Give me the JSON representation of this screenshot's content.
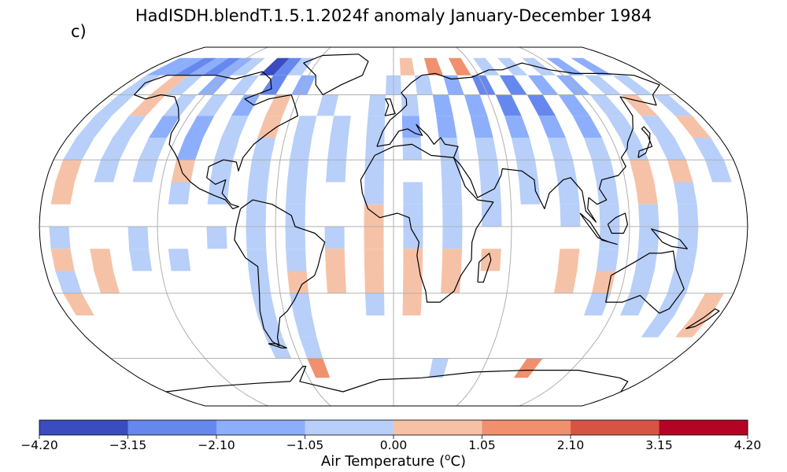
{
  "title": "HadISDH.blendT.1.5.1.2024f anomaly January-December 1984",
  "panel_label": "c)",
  "colorbar": {
    "label_main": "Air Temperature (",
    "label_sup": "o",
    "label_tail": "C)",
    "ticks": [
      "−4.20",
      "−3.15",
      "−2.10",
      "−1.05",
      "0.00",
      "1.05",
      "2.10",
      "3.15",
      "4.20"
    ],
    "bins": [
      -4.2,
      -3.15,
      -2.1,
      -1.05,
      0,
      1.05,
      2.1,
      3.15,
      4.2
    ],
    "colors": [
      "#3b4cc0",
      "#6688ee",
      "#8daefd",
      "#b7cff9",
      "#f6c2a7",
      "#f0906f",
      "#d75445",
      "#b40426"
    ]
  },
  "colors": {
    "ocean": "#ffffff",
    "gridline": "#b0b0b0",
    "coast": "#000000"
  },
  "map": {
    "projection": "Robinson",
    "anomaly_grid": [
      {
        "lon": -170,
        "lat": 75,
        "v": -1.2
      },
      {
        "lon": -160,
        "lat": 75,
        "v": -1.5
      },
      {
        "lon": -150,
        "lat": 75,
        "v": -2.2
      },
      {
        "lon": -140,
        "lat": 75,
        "v": -1.6
      },
      {
        "lon": -130,
        "lat": 75,
        "v": -2.4
      },
      {
        "lon": -120,
        "lat": 75,
        "v": -1.4
      },
      {
        "lon": -110,
        "lat": 75,
        "v": -0.8
      },
      {
        "lon": -90,
        "lat": 75,
        "v": -3.4
      },
      {
        "lon": -80,
        "lat": 75,
        "v": -2.6
      },
      {
        "lon": -70,
        "lat": 75,
        "v": -0.6
      },
      {
        "lon": 10,
        "lat": 75,
        "v": 0.6
      },
      {
        "lon": 30,
        "lat": 75,
        "v": 1.4
      },
      {
        "lon": 50,
        "lat": 75,
        "v": 1.6
      },
      {
        "lon": 70,
        "lat": 75,
        "v": -0.7
      },
      {
        "lon": 90,
        "lat": 75,
        "v": -0.5
      },
      {
        "lon": 110,
        "lat": 75,
        "v": -0.9
      },
      {
        "lon": 130,
        "lat": 75,
        "v": -1.3
      },
      {
        "lon": 150,
        "lat": 75,
        "v": -1.8
      },
      {
        "lon": -170,
        "lat": 65,
        "v": -0.8
      },
      {
        "lon": -150,
        "lat": 65,
        "v": 0.6
      },
      {
        "lon": -140,
        "lat": 65,
        "v": -0.5
      },
      {
        "lon": -120,
        "lat": 65,
        "v": -1.1
      },
      {
        "lon": -100,
        "lat": 65,
        "v": -0.9
      },
      {
        "lon": -80,
        "lat": 65,
        "v": -2.8
      },
      {
        "lon": -60,
        "lat": 65,
        "v": -1.2
      },
      {
        "lon": 0,
        "lat": 65,
        "v": -0.6
      },
      {
        "lon": 20,
        "lat": 65,
        "v": -0.9
      },
      {
        "lon": 40,
        "lat": 65,
        "v": -1.6
      },
      {
        "lon": 60,
        "lat": 65,
        "v": -2.2
      },
      {
        "lon": 80,
        "lat": 65,
        "v": -2.5
      },
      {
        "lon": 100,
        "lat": 65,
        "v": -1.8
      },
      {
        "lon": 120,
        "lat": 65,
        "v": -1.4
      },
      {
        "lon": 140,
        "lat": 65,
        "v": -1.0
      },
      {
        "lon": 160,
        "lat": 65,
        "v": -0.7
      },
      {
        "lon": -170,
        "lat": 55,
        "v": -0.4
      },
      {
        "lon": -150,
        "lat": 55,
        "v": 0.5
      },
      {
        "lon": -130,
        "lat": 55,
        "v": -0.6
      },
      {
        "lon": -110,
        "lat": 55,
        "v": -0.9
      },
      {
        "lon": -90,
        "lat": 55,
        "v": -1.2
      },
      {
        "lon": -70,
        "lat": 55,
        "v": 0.7
      },
      {
        "lon": -40,
        "lat": 55,
        "v": -0.5
      },
      {
        "lon": -10,
        "lat": 55,
        "v": -0.8
      },
      {
        "lon": 10,
        "lat": 55,
        "v": -0.6
      },
      {
        "lon": 30,
        "lat": 55,
        "v": -1.3
      },
      {
        "lon": 50,
        "lat": 55,
        "v": -2.0
      },
      {
        "lon": 70,
        "lat": 55,
        "v": -2.6
      },
      {
        "lon": 90,
        "lat": 55,
        "v": -2.3
      },
      {
        "lon": 110,
        "lat": 55,
        "v": -1.5
      },
      {
        "lon": 130,
        "lat": 55,
        "v": -0.9
      },
      {
        "lon": 150,
        "lat": 55,
        "v": 0.8
      },
      {
        "lon": 170,
        "lat": 55,
        "v": -0.5
      },
      {
        "lon": -170,
        "lat": 45,
        "v": -0.3
      },
      {
        "lon": -150,
        "lat": 45,
        "v": -0.4
      },
      {
        "lon": -130,
        "lat": 45,
        "v": -1.4
      },
      {
        "lon": -110,
        "lat": 45,
        "v": -1.7
      },
      {
        "lon": -90,
        "lat": 45,
        "v": -0.8
      },
      {
        "lon": -70,
        "lat": 45,
        "v": 0.6
      },
      {
        "lon": -50,
        "lat": 45,
        "v": -0.5
      },
      {
        "lon": -30,
        "lat": 45,
        "v": -0.4
      },
      {
        "lon": -10,
        "lat": 45,
        "v": -0.7
      },
      {
        "lon": 10,
        "lat": 45,
        "v": -1.1
      },
      {
        "lon": 30,
        "lat": 45,
        "v": -1.5
      },
      {
        "lon": 50,
        "lat": 45,
        "v": -1.3
      },
      {
        "lon": 70,
        "lat": 45,
        "v": -1.6
      },
      {
        "lon": 90,
        "lat": 45,
        "v": -1.9
      },
      {
        "lon": 110,
        "lat": 45,
        "v": -1.4
      },
      {
        "lon": 130,
        "lat": 45,
        "v": -0.9
      },
      {
        "lon": 150,
        "lat": 45,
        "v": -0.4
      },
      {
        "lon": 170,
        "lat": 45,
        "v": 0.5
      },
      {
        "lon": -170,
        "lat": 35,
        "v": -0.5
      },
      {
        "lon": -150,
        "lat": 35,
        "v": -0.4
      },
      {
        "lon": -130,
        "lat": 35,
        "v": -0.6
      },
      {
        "lon": -110,
        "lat": 35,
        "v": -1.1
      },
      {
        "lon": -90,
        "lat": 35,
        "v": -0.7
      },
      {
        "lon": -70,
        "lat": 35,
        "v": -0.4
      },
      {
        "lon": -50,
        "lat": 35,
        "v": -0.3
      },
      {
        "lon": -30,
        "lat": 35,
        "v": -0.5
      },
      {
        "lon": -10,
        "lat": 35,
        "v": -0.6
      },
      {
        "lon": 10,
        "lat": 35,
        "v": -0.4
      },
      {
        "lon": 30,
        "lat": 35,
        "v": -0.7
      },
      {
        "lon": 50,
        "lat": 35,
        "v": -0.6
      },
      {
        "lon": 70,
        "lat": 35,
        "v": -0.9
      },
      {
        "lon": 90,
        "lat": 35,
        "v": -0.8
      },
      {
        "lon": 110,
        "lat": 35,
        "v": -0.7
      },
      {
        "lon": 130,
        "lat": 35,
        "v": -0.5
      },
      {
        "lon": 150,
        "lat": 35,
        "v": -0.4
      },
      {
        "lon": 170,
        "lat": 35,
        "v": -0.6
      },
      {
        "lon": -170,
        "lat": 25,
        "v": 0.6
      },
      {
        "lon": -150,
        "lat": 25,
        "v": -0.3
      },
      {
        "lon": -130,
        "lat": 25,
        "v": -0.4
      },
      {
        "lon": -110,
        "lat": 25,
        "v": 0.7
      },
      {
        "lon": -90,
        "lat": 25,
        "v": -0.5
      },
      {
        "lon": -70,
        "lat": 25,
        "v": -0.4
      },
      {
        "lon": -50,
        "lat": 25,
        "v": -0.3
      },
      {
        "lon": -30,
        "lat": 25,
        "v": -0.4
      },
      {
        "lon": -10,
        "lat": 25,
        "v": -0.5
      },
      {
        "lon": 30,
        "lat": 25,
        "v": -0.3
      },
      {
        "lon": 50,
        "lat": 25,
        "v": -0.4
      },
      {
        "lon": 70,
        "lat": 25,
        "v": -0.5
      },
      {
        "lon": 90,
        "lat": 25,
        "v": -0.4
      },
      {
        "lon": 110,
        "lat": 25,
        "v": -0.6
      },
      {
        "lon": 130,
        "lat": 25,
        "v": 0.6
      },
      {
        "lon": 150,
        "lat": 25,
        "v": 0.5
      },
      {
        "lon": 170,
        "lat": 25,
        "v": -0.4
      },
      {
        "lon": -170,
        "lat": 15,
        "v": 0.5
      },
      {
        "lon": -110,
        "lat": 15,
        "v": -0.4
      },
      {
        "lon": -90,
        "lat": 15,
        "v": -0.5
      },
      {
        "lon": -70,
        "lat": 15,
        "v": -0.4
      },
      {
        "lon": -50,
        "lat": 15,
        "v": -0.3
      },
      {
        "lon": -10,
        "lat": 15,
        "v": -0.4
      },
      {
        "lon": 10,
        "lat": 15,
        "v": -0.3
      },
      {
        "lon": 30,
        "lat": 15,
        "v": -0.4
      },
      {
        "lon": 50,
        "lat": 15,
        "v": -0.3
      },
      {
        "lon": 70,
        "lat": 15,
        "v": -0.4
      },
      {
        "lon": 90,
        "lat": 15,
        "v": -0.5
      },
      {
        "lon": 110,
        "lat": 15,
        "v": -0.4
      },
      {
        "lon": 130,
        "lat": 15,
        "v": 0.5
      },
      {
        "lon": 150,
        "lat": 15,
        "v": -0.3
      },
      {
        "lon": -70,
        "lat": 5,
        "v": -0.4
      },
      {
        "lon": -50,
        "lat": 5,
        "v": -0.5
      },
      {
        "lon": -10,
        "lat": 5,
        "v": 0.5
      },
      {
        "lon": 10,
        "lat": 5,
        "v": -0.3
      },
      {
        "lon": 30,
        "lat": 5,
        "v": -0.4
      },
      {
        "lon": 50,
        "lat": 5,
        "v": -0.3
      },
      {
        "lon": 90,
        "lat": 5,
        "v": -0.4
      },
      {
        "lon": 110,
        "lat": 5,
        "v": -0.5
      },
      {
        "lon": 130,
        "lat": 5,
        "v": -0.4
      },
      {
        "lon": 150,
        "lat": 5,
        "v": -0.3
      },
      {
        "lon": -170,
        "lat": -5,
        "v": -0.4
      },
      {
        "lon": -130,
        "lat": -5,
        "v": -0.3
      },
      {
        "lon": -90,
        "lat": -5,
        "v": -0.4
      },
      {
        "lon": -70,
        "lat": -5,
        "v": -0.5
      },
      {
        "lon": -50,
        "lat": -5,
        "v": -0.4
      },
      {
        "lon": -30,
        "lat": -5,
        "v": -0.3
      },
      {
        "lon": -10,
        "lat": -5,
        "v": 0.6
      },
      {
        "lon": 10,
        "lat": -5,
        "v": -0.4
      },
      {
        "lon": 30,
        "lat": -5,
        "v": -0.5
      },
      {
        "lon": 110,
        "lat": -5,
        "v": -0.4
      },
      {
        "lon": 130,
        "lat": -5,
        "v": -0.3
      },
      {
        "lon": 150,
        "lat": -5,
        "v": -0.4
      },
      {
        "lon": -170,
        "lat": -15,
        "v": 0.6
      },
      {
        "lon": -150,
        "lat": -15,
        "v": 0.5
      },
      {
        "lon": -130,
        "lat": -15,
        "v": -0.3
      },
      {
        "lon": -110,
        "lat": -15,
        "v": -0.4
      },
      {
        "lon": -70,
        "lat": -15,
        "v": -0.5
      },
      {
        "lon": -50,
        "lat": -15,
        "v": -0.4
      },
      {
        "lon": -30,
        "lat": -15,
        "v": 0.5
      },
      {
        "lon": -10,
        "lat": -15,
        "v": 0.6
      },
      {
        "lon": 10,
        "lat": -15,
        "v": 0.7
      },
      {
        "lon": 30,
        "lat": -15,
        "v": 0.8
      },
      {
        "lon": 50,
        "lat": -15,
        "v": 0.5
      },
      {
        "lon": 90,
        "lat": -15,
        "v": 0.6
      },
      {
        "lon": 110,
        "lat": -15,
        "v": -0.4
      },
      {
        "lon": 130,
        "lat": -15,
        "v": -0.5
      },
      {
        "lon": 150,
        "lat": -15,
        "v": -0.3
      },
      {
        "lon": -170,
        "lat": -25,
        "v": -0.4
      },
      {
        "lon": -150,
        "lat": -25,
        "v": 0.5
      },
      {
        "lon": -70,
        "lat": -25,
        "v": -0.5
      },
      {
        "lon": -50,
        "lat": -25,
        "v": 0.6
      },
      {
        "lon": -30,
        "lat": -25,
        "v": 0.5
      },
      {
        "lon": -10,
        "lat": -25,
        "v": 0.6
      },
      {
        "lon": 10,
        "lat": -25,
        "v": 0.7
      },
      {
        "lon": 30,
        "lat": -25,
        "v": 0.6
      },
      {
        "lon": 90,
        "lat": -25,
        "v": 0.5
      },
      {
        "lon": 110,
        "lat": -25,
        "v": 0.6
      },
      {
        "lon": 130,
        "lat": -25,
        "v": -0.4
      },
      {
        "lon": 150,
        "lat": -25,
        "v": -0.5
      },
      {
        "lon": -170,
        "lat": -35,
        "v": 0.5
      },
      {
        "lon": -70,
        "lat": -35,
        "v": -0.4
      },
      {
        "lon": -50,
        "lat": -35,
        "v": -0.5
      },
      {
        "lon": -10,
        "lat": -35,
        "v": -0.3
      },
      {
        "lon": 10,
        "lat": -35,
        "v": 0.5
      },
      {
        "lon": 110,
        "lat": -35,
        "v": -0.4
      },
      {
        "lon": 130,
        "lat": -35,
        "v": -0.4
      },
      {
        "lon": 150,
        "lat": -35,
        "v": -0.3
      },
      {
        "lon": 170,
        "lat": -35,
        "v": 0.6
      },
      {
        "lon": -70,
        "lat": -45,
        "v": -0.8
      },
      {
        "lon": -50,
        "lat": -45,
        "v": -0.4
      },
      {
        "lon": 150,
        "lat": -45,
        "v": -0.3
      },
      {
        "lon": 170,
        "lat": -45,
        "v": 0.7
      },
      {
        "lon": -70,
        "lat": -55,
        "v": -0.4
      },
      {
        "lon": -50,
        "lat": -55,
        "v": -0.5
      },
      {
        "lon": -50,
        "lat": -65,
        "v": 1.2
      },
      {
        "lon": 90,
        "lat": -65,
        "v": 1.4
      },
      {
        "lon": 30,
        "lat": -65,
        "v": -0.6
      }
    ]
  }
}
